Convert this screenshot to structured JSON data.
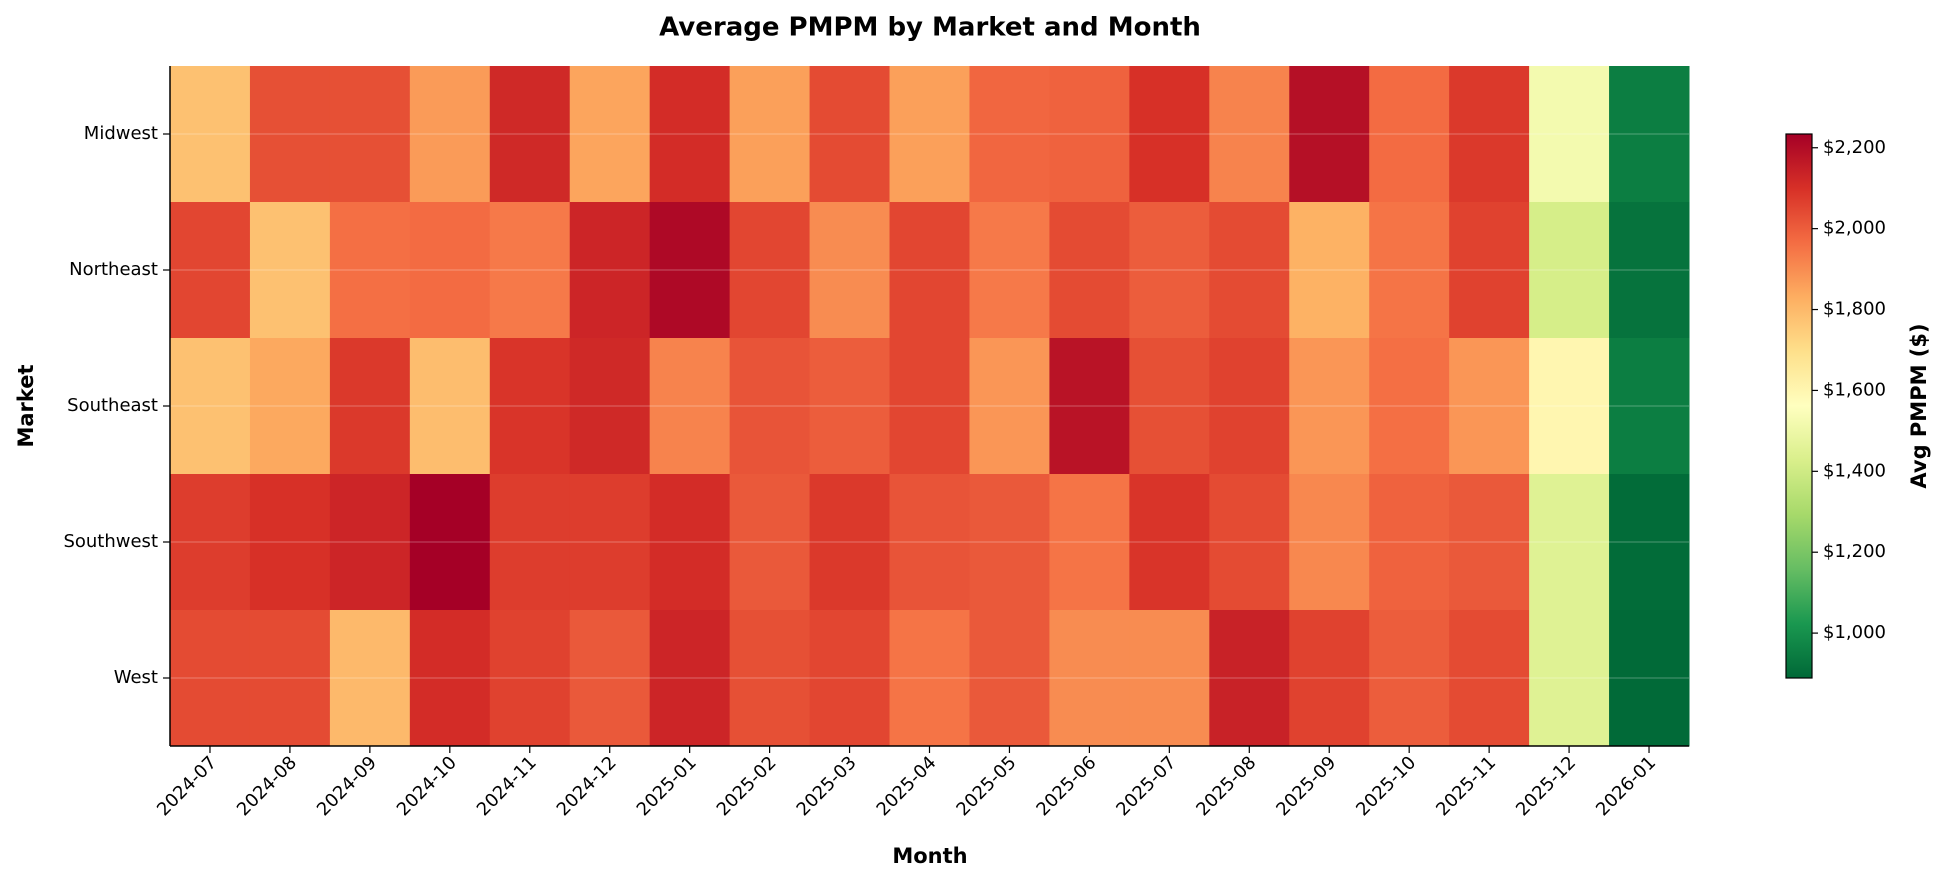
{
  "chart_data": {
    "type": "heatmap",
    "title": "Average PMPM by Market and Month",
    "x_label": "Month",
    "y_label": "Market",
    "colorbar_label": "Avg PMPM ($)",
    "categories": [
      "2024-07",
      "2024-08",
      "2024-09",
      "2024-10",
      "2024-11",
      "2024-12",
      "2025-01",
      "2025-02",
      "2025-03",
      "2025-04",
      "2025-05",
      "2025-06",
      "2025-07",
      "2025-08",
      "2025-09",
      "2025-10",
      "2025-11",
      "2025-12",
      "2026-01"
    ],
    "rows": [
      "Midwest",
      "Northeast",
      "Southeast",
      "Southwest",
      "West"
    ],
    "values": [
      [
        1780,
        2030,
        2030,
        1870,
        2120,
        1850,
        2110,
        1860,
        2040,
        1860,
        1980,
        1990,
        2100,
        1920,
        2190,
        1970,
        2080,
        1520,
        950
      ],
      [
        2050,
        1780,
        1960,
        1970,
        1940,
        2130,
        2210,
        2050,
        1900,
        2050,
        1940,
        2040,
        2000,
        2040,
        1820,
        1950,
        2060,
        1420,
        920
      ],
      [
        1780,
        1840,
        2080,
        1790,
        2090,
        2120,
        1920,
        2020,
        2000,
        2050,
        1880,
        2180,
        2030,
        2060,
        1880,
        1960,
        1880,
        1600,
        950
      ],
      [
        2070,
        2100,
        2130,
        2234,
        2070,
        2070,
        2110,
        2010,
        2080,
        2020,
        2010,
        1950,
        2090,
        2040,
        1910,
        1990,
        2010,
        1450,
        900
      ],
      [
        2040,
        2040,
        1800,
        2110,
        2060,
        2010,
        2130,
        2030,
        2050,
        1950,
        2010,
        1900,
        1900,
        2140,
        2060,
        2000,
        2040,
        1450,
        895
      ]
    ],
    "colormap": [
      "#006837",
      "#1a9850",
      "#66bd63",
      "#a6d96a",
      "#d9ef8b",
      "#ffffbf",
      "#fee08b",
      "#fdae61",
      "#f46d43",
      "#d73027",
      "#a50026"
    ],
    "clim": [
      889,
      2234
    ],
    "cticks": [
      {
        "value": 1000,
        "label": "$1,000"
      },
      {
        "value": 1200,
        "label": "$1,200"
      },
      {
        "value": 1400,
        "label": "$1,400"
      },
      {
        "value": 1600,
        "label": "$1,600"
      },
      {
        "value": 1800,
        "label": "$1,800"
      },
      {
        "value": 2000,
        "label": "$2,000"
      },
      {
        "value": 2200,
        "label": "$2,200"
      }
    ],
    "grid": true
  }
}
